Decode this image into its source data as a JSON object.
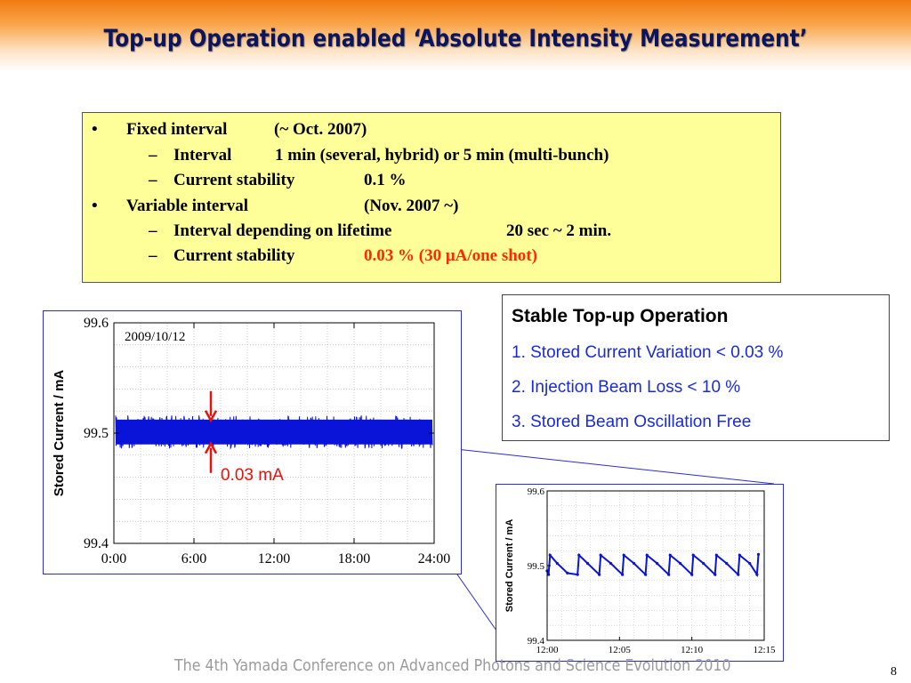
{
  "slide": {
    "title": "Top-up Operation enabled ‘Absolute Intensity Measurement’",
    "footer": "The 4th  Yamada Conference on Advanced Photons and Science Evolution 2010",
    "page_number": "8"
  },
  "bullets": {
    "fixed": {
      "marker": "•",
      "label": "Fixed interval",
      "period": "(~ Oct. 2007)"
    },
    "fixed_interval": {
      "dash": "–",
      "label": "Interval",
      "value": "1 min (several, hybrid) or 5 min (multi-bunch)"
    },
    "fixed_stability": {
      "dash": "–",
      "label": "Current stability",
      "value": "0.1 %"
    },
    "variable": {
      "marker": "•",
      "label": "Variable interval",
      "period": "(Nov. 2007 ~)"
    },
    "variable_interval": {
      "dash": "–",
      "label": "Interval depending on lifetime",
      "value": "20 sec ~ 2 min."
    },
    "variable_stability": {
      "dash": "–",
      "label": "Current stability",
      "value": "0.03 % (30 μA/one shot)"
    }
  },
  "stable_box": {
    "title": "Stable Top-up Operation",
    "items": [
      "1. Stored Current Variation < 0.03 %",
      "2. Injection Beam Loss < 10 %",
      "3. Stored Beam Oscillation Free"
    ],
    "text_color": "#1a2bd6"
  },
  "colors": {
    "frame": "#2b2bd8",
    "data": "#0a14d8",
    "arrow": "#e8120c",
    "title": "#0a1560"
  },
  "chart_data": [
    {
      "type": "line",
      "annotation_date": "2009/10/12",
      "ylabel": "Stored Current / mA",
      "xlabel": "",
      "xticks": [
        "0:00",
        "6:00",
        "12:00",
        "18:00",
        "24:00"
      ],
      "yticks": [
        "99.4",
        "99.5",
        "99.6"
      ],
      "xlim": [
        0,
        24
      ],
      "ylim": [
        99.4,
        99.6
      ],
      "series": [
        {
          "band_center": 99.501,
          "band_half_width": 0.015
        }
      ],
      "arrow_label": "0.03 mA",
      "grid": true
    },
    {
      "type": "scatter",
      "ylabel": "Stored Current / mA",
      "xticks": [
        "12:00",
        "12:05",
        "12:10",
        "12:15"
      ],
      "yticks": [
        "99.4",
        "99.5",
        "99.6"
      ],
      "xlim": [
        0,
        15
      ],
      "ylim": [
        99.4,
        99.6
      ],
      "x": [
        0,
        0.1,
        0.2,
        0.7,
        1.4,
        2.1,
        2.2,
        2.8,
        3.6,
        3.7,
        4.4,
        5.2,
        5.3,
        6.0,
        6.8,
        6.9,
        7.6,
        8.4,
        8.5,
        9.2,
        10.0,
        10.1,
        10.8,
        11.6,
        11.7,
        12.4,
        13.2,
        13.3,
        14.0,
        14.5,
        14.6
      ],
      "y": [
        99.493,
        99.488,
        99.514,
        99.503,
        99.49,
        99.488,
        99.514,
        99.503,
        99.488,
        99.514,
        99.503,
        99.488,
        99.514,
        99.503,
        99.488,
        99.514,
        99.503,
        99.488,
        99.514,
        99.503,
        99.488,
        99.514,
        99.503,
        99.488,
        99.514,
        99.503,
        99.488,
        99.514,
        99.503,
        99.488,
        99.515
      ],
      "grid": true
    }
  ]
}
